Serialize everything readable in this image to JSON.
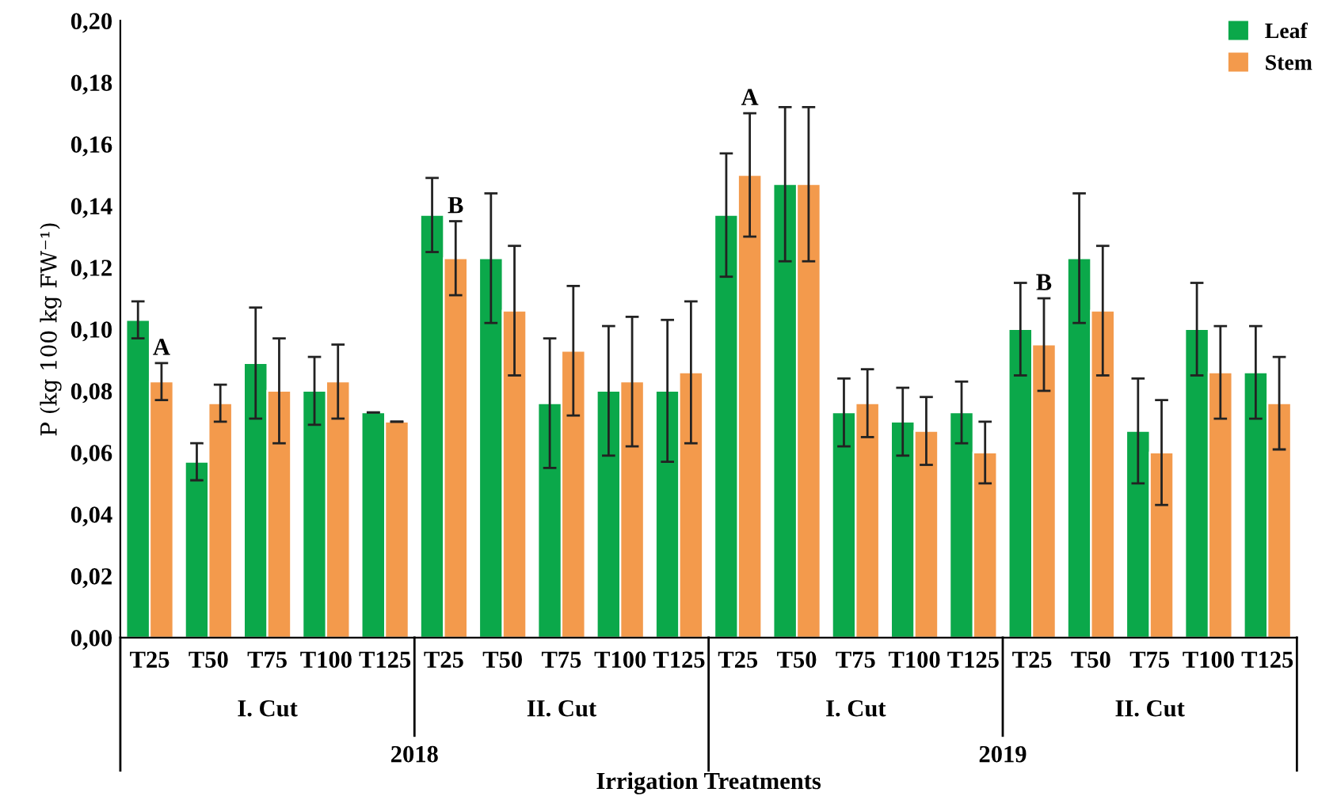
{
  "chart_data": {
    "type": "bar",
    "ylabel": "P (kg 100 kg FW⁻¹)",
    "xlabel": "Irrigation Treatments",
    "categories": [
      "T25",
      "T50",
      "T75",
      "T100",
      "T125",
      "T25",
      "T50",
      "T75",
      "T100",
      "T125",
      "T25",
      "T50",
      "T75",
      "T100",
      "T125",
      "T25",
      "T50",
      "T75",
      "T100",
      "T125"
    ],
    "series": [
      {
        "name": "Leaf",
        "color": "#0ba84a",
        "values": [
          0.103,
          0.057,
          0.089,
          0.08,
          0.073,
          0.137,
          0.123,
          0.076,
          0.08,
          0.08,
          0.137,
          0.147,
          0.073,
          0.07,
          0.073,
          0.1,
          0.123,
          0.067,
          0.1,
          0.086
        ],
        "errors": [
          0.006,
          0.006,
          0.018,
          0.011,
          0,
          0.012,
          0.021,
          0.021,
          0.021,
          0.023,
          0.02,
          0.025,
          0.011,
          0.011,
          0.01,
          0.015,
          0.021,
          0.017,
          0.015,
          0.015
        ]
      },
      {
        "name": "Stem",
        "color": "#f39a4c",
        "values": [
          0.083,
          0.076,
          0.08,
          0.083,
          0.07,
          0.123,
          0.106,
          0.093,
          0.083,
          0.086,
          0.15,
          0.147,
          0.076,
          0.067,
          0.06,
          0.095,
          0.106,
          0.06,
          0.086,
          0.076
        ],
        "errors": [
          0.006,
          0.006,
          0.017,
          0.012,
          0,
          0.012,
          0.021,
          0.021,
          0.021,
          0.023,
          0.02,
          0.025,
          0.011,
          0.011,
          0.01,
          0.015,
          0.021,
          0.017,
          0.015,
          0.015
        ]
      }
    ],
    "ylim": [
      0,
      0.2
    ],
    "yticks": [
      {
        "value": 0,
        "label": "0,00"
      },
      {
        "value": 0.02,
        "label": "0,02"
      },
      {
        "value": 0.04,
        "label": "0,04"
      },
      {
        "value": 0.06,
        "label": "0,06"
      },
      {
        "value": 0.08,
        "label": "0,08"
      },
      {
        "value": 0.1,
        "label": "0,10"
      },
      {
        "value": 0.12,
        "label": "0,12"
      },
      {
        "value": 0.14,
        "label": "0,14"
      },
      {
        "value": 0.16,
        "label": "0,16"
      },
      {
        "value": 0.18,
        "label": "0,18"
      },
      {
        "value": 0.2,
        "label": "0,20"
      }
    ],
    "annotations": [
      "I. Cut",
      "II. Cut",
      "I. Cut",
      "II. Cut",
      "2018",
      "2019",
      "A",
      "B",
      "A",
      "B"
    ],
    "legend": "top right",
    "grid": false
  }
}
